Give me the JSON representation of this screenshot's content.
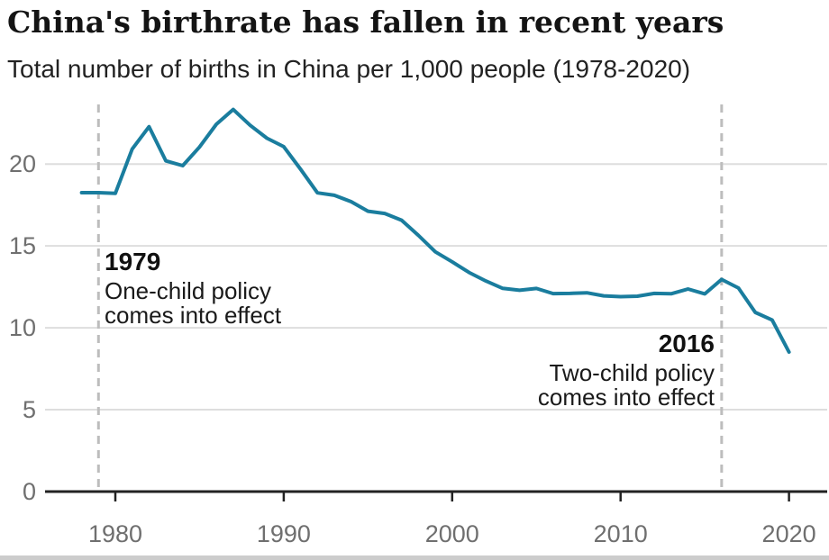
{
  "header": {
    "title": "China's birthrate has fallen in recent years",
    "subtitle": "Total number of births in China per 1,000 people (1978-2020)"
  },
  "chart_data": {
    "type": "line",
    "title": "China's birthrate has fallen in recent years",
    "subtitle": "Total number of births in China per 1,000 people (1978-2020)",
    "xlabel": "",
    "ylabel": "",
    "grid": "horizontal",
    "legend": "none",
    "xlim": [
      1978,
      2020
    ],
    "ylim": [
      0,
      24
    ],
    "yticks": [
      0,
      5,
      10,
      15,
      20
    ],
    "xticks": [
      1980,
      1990,
      2000,
      2010,
      2020
    ],
    "x": [
      1978,
      1979,
      1980,
      1981,
      1982,
      1983,
      1984,
      1985,
      1986,
      1987,
      1988,
      1989,
      1990,
      1991,
      1992,
      1993,
      1994,
      1995,
      1996,
      1997,
      1998,
      1999,
      2000,
      2001,
      2002,
      2003,
      2004,
      2005,
      2006,
      2007,
      2008,
      2009,
      2010,
      2011,
      2012,
      2013,
      2014,
      2015,
      2016,
      2017,
      2018,
      2019,
      2020
    ],
    "series": [
      {
        "name": "Births per 1,000 people",
        "color": "#1a7d9e",
        "values": [
          18.25,
          18.25,
          18.21,
          20.91,
          22.28,
          20.19,
          19.9,
          21.04,
          22.43,
          23.33,
          22.37,
          21.58,
          21.06,
          19.68,
          18.24,
          18.09,
          17.7,
          17.12,
          16.98,
          16.57,
          15.64,
          14.64,
          14.03,
          13.38,
          12.86,
          12.41,
          12.29,
          12.4,
          12.09,
          12.1,
          12.14,
          11.95,
          11.9,
          11.93,
          12.1,
          12.08,
          12.37,
          12.07,
          12.95,
          12.43,
          10.94,
          10.48,
          8.52
        ]
      }
    ],
    "annotations": [
      {
        "year": 1979,
        "label": "1979",
        "lines": [
          "One-child policy",
          "comes into effect"
        ],
        "align": "left"
      },
      {
        "year": 2016,
        "label": "2016",
        "lines": [
          "Two-child policy",
          "comes into effect"
        ],
        "align": "right"
      }
    ]
  },
  "colors": {
    "line": "#1a7d9e",
    "grid": "#dedede",
    "axis": "#222222",
    "dashed": "#bdbdbd",
    "tick_label": "#6f6f6f",
    "annotation_year": "#111111",
    "annotation_text": "#1a1a1a",
    "footer_bar": "#cccccc"
  }
}
